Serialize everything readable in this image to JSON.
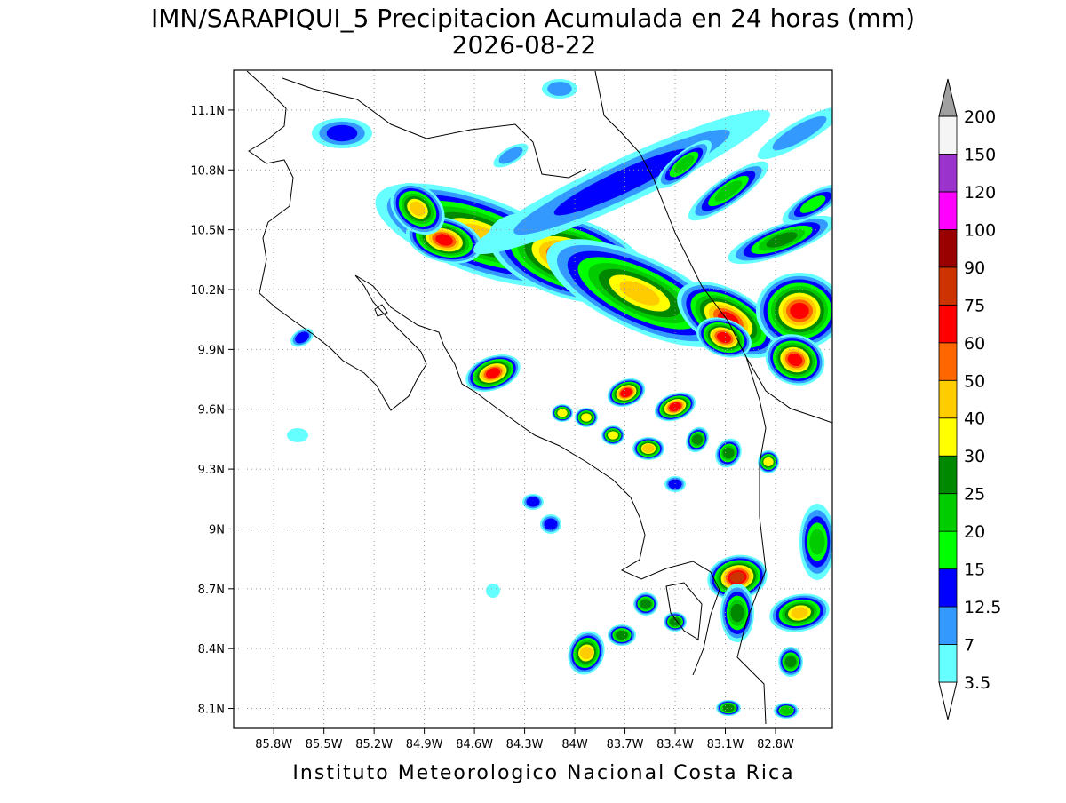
{
  "title": "IMN/SARAPIQUI_5 Precipitacion Acumulada en 24 horas (mm)",
  "subtitle": "2026-08-22",
  "footer": "Instituto Meteorologico Nacional Costa Rica",
  "map": {
    "xlim": [
      -86.04,
      -82.46
    ],
    "ylim": [
      8.0,
      11.3
    ],
    "grid": true,
    "xticks": [
      {
        "value": -85.8,
        "label": "85.8W"
      },
      {
        "value": -85.5,
        "label": "85.5W"
      },
      {
        "value": -85.2,
        "label": "85.2W"
      },
      {
        "value": -84.9,
        "label": "84.9W"
      },
      {
        "value": -84.6,
        "label": "84.6W"
      },
      {
        "value": -84.3,
        "label": "84.3W"
      },
      {
        "value": -84.0,
        "label": "84W"
      },
      {
        "value": -83.7,
        "label": "83.7W"
      },
      {
        "value": -83.4,
        "label": "83.4W"
      },
      {
        "value": -83.1,
        "label": "83.1W"
      },
      {
        "value": -82.8,
        "label": "82.8W"
      }
    ],
    "yticks": [
      {
        "value": 8.1,
        "label": "8.1N"
      },
      {
        "value": 8.4,
        "label": "8.4N"
      },
      {
        "value": 8.7,
        "label": "8.7N"
      },
      {
        "value": 9.0,
        "label": "9N"
      },
      {
        "value": 9.3,
        "label": "9.3N"
      },
      {
        "value": 9.6,
        "label": "9.6N"
      },
      {
        "value": 9.9,
        "label": "9.9N"
      },
      {
        "value": 10.2,
        "label": "10.2N"
      },
      {
        "value": 10.5,
        "label": "10.5N"
      },
      {
        "value": 10.8,
        "label": "10.8N"
      },
      {
        "value": 11.1,
        "label": "11.1N"
      }
    ]
  },
  "colorbar": {
    "levels": [
      3.5,
      7,
      12.5,
      15,
      20,
      25,
      30,
      40,
      50,
      60,
      75,
      90,
      100,
      120,
      150,
      200
    ],
    "colors": [
      "#ffffff",
      "#66ffff",
      "#3399ff",
      "#0000ff",
      "#00ff00",
      "#00cc00",
      "#008800",
      "#ffff00",
      "#ffcc00",
      "#ff6600",
      "#ff0000",
      "#cc3300",
      "#990000",
      "#ff00ff",
      "#9933cc",
      "#f5f5f5",
      "#a0a0a0"
    ]
  }
}
